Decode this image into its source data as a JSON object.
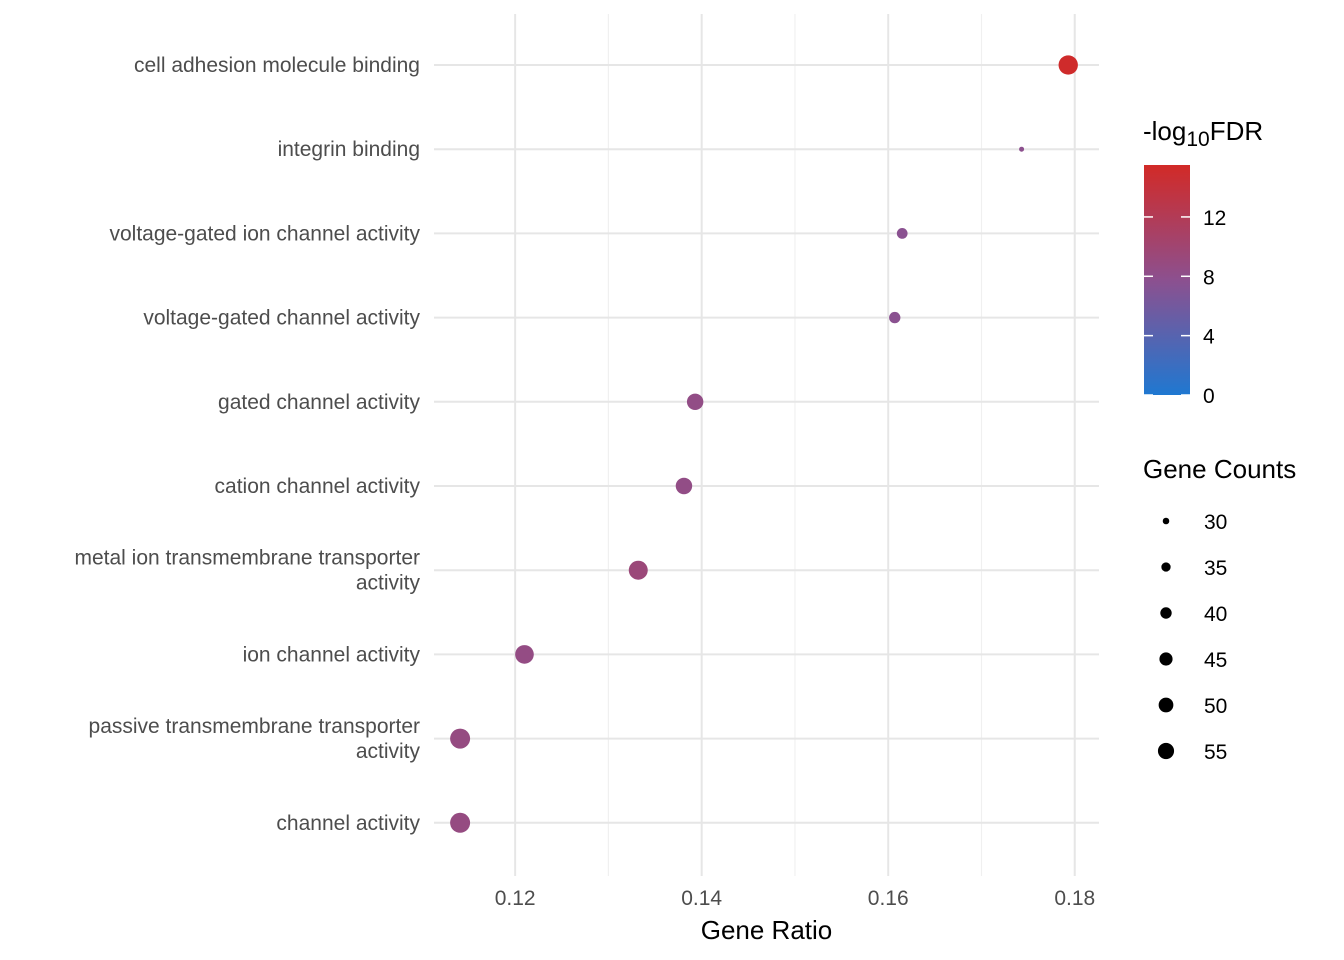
{
  "chart_data": {
    "type": "scatter",
    "xlabel": "Gene Ratio",
    "ylabel": "",
    "xlim": [
      0.1113,
      0.1826
    ],
    "x_ticks": [
      {
        "value": 0.12,
        "label": "0.12"
      },
      {
        "value": 0.14,
        "label": "0.14"
      },
      {
        "value": 0.16,
        "label": "0.16"
      },
      {
        "value": 0.18,
        "label": "0.18"
      }
    ],
    "x_minor": [
      0.13,
      0.15,
      0.17
    ],
    "grid": true,
    "categories": [
      [
        "cell adhesion molecule binding"
      ],
      [
        "integrin binding"
      ],
      [
        "voltage-gated ion channel activity"
      ],
      [
        "voltage-gated channel activity"
      ],
      [
        "gated channel activity"
      ],
      [
        "cation channel activity"
      ],
      [
        "metal ion transmembrane transporter",
        "activity"
      ],
      [
        "ion channel activity"
      ],
      [
        "passive transmembrane transporter",
        "activity"
      ],
      [
        "channel activity"
      ]
    ],
    "points": [
      {
        "category": "cell adhesion molecule binding",
        "gene_ratio": 0.1793,
        "neg_log10_fdr": 15.2,
        "gene_count": 54
      },
      {
        "category": "integrin binding",
        "gene_ratio": 0.1743,
        "neg_log10_fdr": 7.8,
        "gene_count": 27
      },
      {
        "category": "voltage-gated ion channel activity",
        "gene_ratio": 0.1615,
        "neg_log10_fdr": 7.6,
        "gene_count": 34
      },
      {
        "category": "voltage-gated channel activity",
        "gene_ratio": 0.1607,
        "neg_log10_fdr": 7.6,
        "gene_count": 35
      },
      {
        "category": "gated channel activity",
        "gene_ratio": 0.1393,
        "neg_log10_fdr": 8.4,
        "gene_count": 46
      },
      {
        "category": "cation channel activity",
        "gene_ratio": 0.1381,
        "neg_log10_fdr": 8.4,
        "gene_count": 46
      },
      {
        "category": "metal ion transmembrane transporter activity",
        "gene_ratio": 0.1332,
        "neg_log10_fdr": 9.4,
        "gene_count": 53
      },
      {
        "category": "ion channel activity",
        "gene_ratio": 0.121,
        "neg_log10_fdr": 8.6,
        "gene_count": 52
      },
      {
        "category": "passive transmembrane transporter activity",
        "gene_ratio": 0.1141,
        "neg_log10_fdr": 8.8,
        "gene_count": 56
      },
      {
        "category": "channel activity",
        "gene_ratio": 0.1141,
        "neg_log10_fdr": 8.8,
        "gene_count": 56
      }
    ],
    "color_legend": {
      "title_prefix": "-log",
      "title_subscript": "10",
      "title_suffix": "FDR",
      "min": 0,
      "max": 15.5,
      "low_color": "#1f78d1",
      "mid_color": "#8c508f",
      "high_color": "#d22a27",
      "ticks": [
        {
          "value": 0,
          "label": "0"
        },
        {
          "value": 4,
          "label": "4"
        },
        {
          "value": 8,
          "label": "8"
        },
        {
          "value": 12,
          "label": "12"
        }
      ]
    },
    "size_legend": {
      "title": "Gene Counts",
      "range": [
        27,
        56
      ],
      "items": [
        {
          "value": 30,
          "label": "30"
        },
        {
          "value": 35,
          "label": "35"
        },
        {
          "value": 40,
          "label": "40"
        },
        {
          "value": 45,
          "label": "45"
        },
        {
          "value": 50,
          "label": "50"
        },
        {
          "value": 55,
          "label": "55"
        }
      ]
    },
    "legend_placement": "right"
  }
}
